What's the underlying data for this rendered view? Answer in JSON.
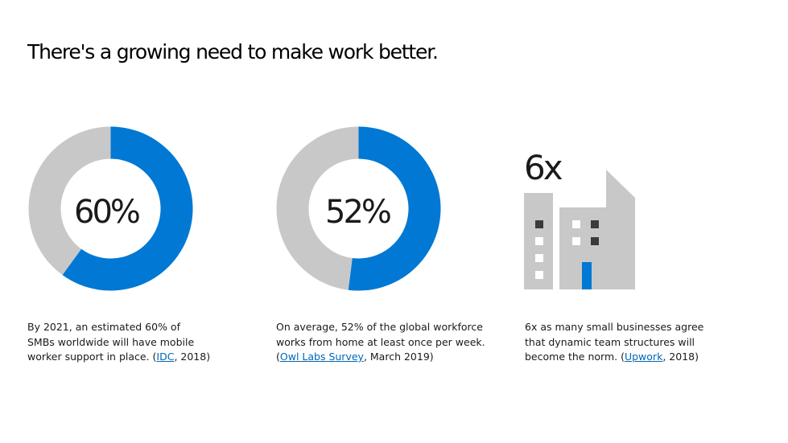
{
  "title": "There's a growing need to make work better.",
  "colors": {
    "accent": "#0078d4",
    "track": "#c8c8c8",
    "building": "#c8c8c8",
    "window_dark": "#3b3b3b",
    "door": "#0078d4",
    "link": "#0067b8"
  },
  "stats": [
    {
      "value_label": "60%",
      "caption": {
        "line1": "By 2021, an estimated 60% of",
        "line2": "SMBs worldwide will have mobile",
        "line3_pre": "worker support in place. (",
        "link": "IDC",
        "line3_post": ", 2018)"
      }
    },
    {
      "value_label": "52%",
      "caption": {
        "line1": "On average, 52% of the global workforce",
        "line2": "works from home at least once per week.",
        "line3_pre": "(",
        "link": "Owl Labs Survey",
        "line3_post": ", March 2019)"
      }
    },
    {
      "value_label": "6x",
      "icon": "office-building-icon",
      "caption": {
        "line1": "6x as many small businesses agree",
        "line2": "that dynamic team structures will",
        "line3_pre": "become the norm. (",
        "link": "Upwork",
        "line3_post": ", 2018)"
      }
    }
  ],
  "chart_data": [
    {
      "type": "pie",
      "categories": [
        "",
        ""
      ],
      "values": [
        60,
        40
      ]
    },
    {
      "type": "pie",
      "categories": [
        "",
        ""
      ],
      "values": [
        52,
        48
      ]
    }
  ]
}
